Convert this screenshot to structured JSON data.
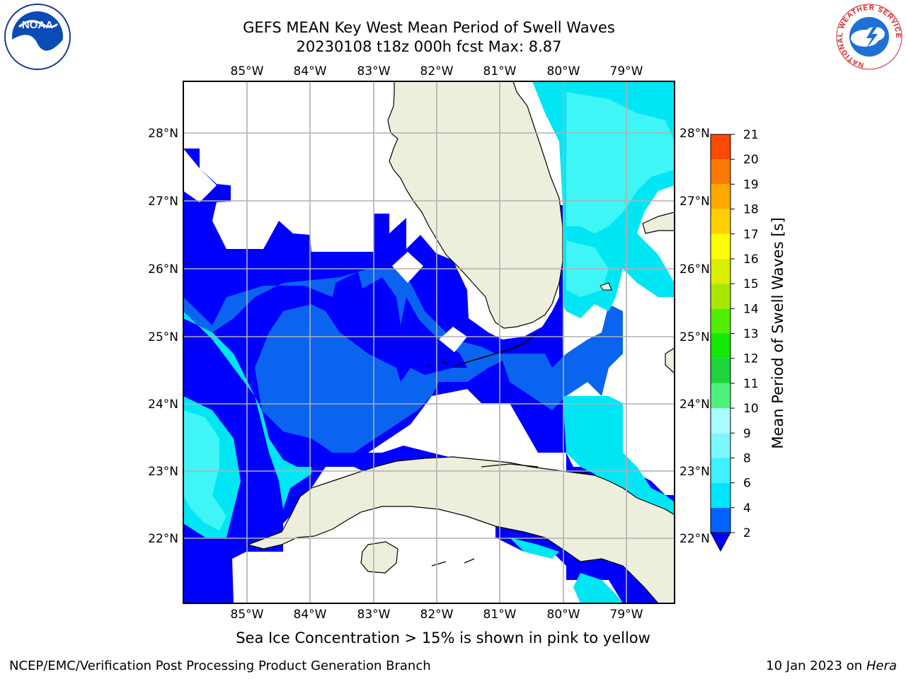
{
  "title": {
    "line1": "GEFS MEAN Key West Mean Period of Swell Waves",
    "line2": "20230108 t18z 000h fcst   Max: 8.87"
  },
  "map": {
    "lon_labels": [
      "85°W",
      "84°W",
      "83°W",
      "82°W",
      "81°W",
      "80°W",
      "79°W"
    ],
    "lat_labels": [
      "28°N",
      "27°N",
      "26°N",
      "25°N",
      "24°N",
      "23°N",
      "22°N"
    ],
    "colors": {
      "land": "#eeeedd",
      "coast": "#000000",
      "grid": "#b0b0b0",
      "water_blue": "#0000ff",
      "water_mid": "#0a64f0",
      "water_cyan": "#00e6f5",
      "water_light": "#40f5f5"
    }
  },
  "colorbar": {
    "label": "Mean Period of Swell Waves [s]",
    "ticks": [
      "2",
      "4",
      "6",
      "8",
      "9",
      "10",
      "11",
      "12",
      "13",
      "14",
      "15",
      "16",
      "17",
      "18",
      "19",
      "20",
      "21"
    ],
    "colors": [
      "#0062ff",
      "#00e6ff",
      "#40f0ff",
      "#7df7ff",
      "#a8fbff",
      "#4cf27a",
      "#1cd43c",
      "#12e800",
      "#50ee00",
      "#a8e800",
      "#d8f000",
      "#ffff00",
      "#ffd000",
      "#ffa800",
      "#ff7800",
      "#ff4800",
      "#ff0000"
    ],
    "underflow_color": "#0000ff"
  },
  "caption": "Sea Ice Concentration > 15% is shown in pink to yellow",
  "footer": {
    "left": "NCEP/EMC/Verification Post Processing Product Generation Branch",
    "right_prefix": "10 Jan 2023 on ",
    "right_host": "Hera"
  },
  "logos": {
    "noaa": "NOAA",
    "nws_ring": "NATIONAL WEATHER SERVICE"
  }
}
